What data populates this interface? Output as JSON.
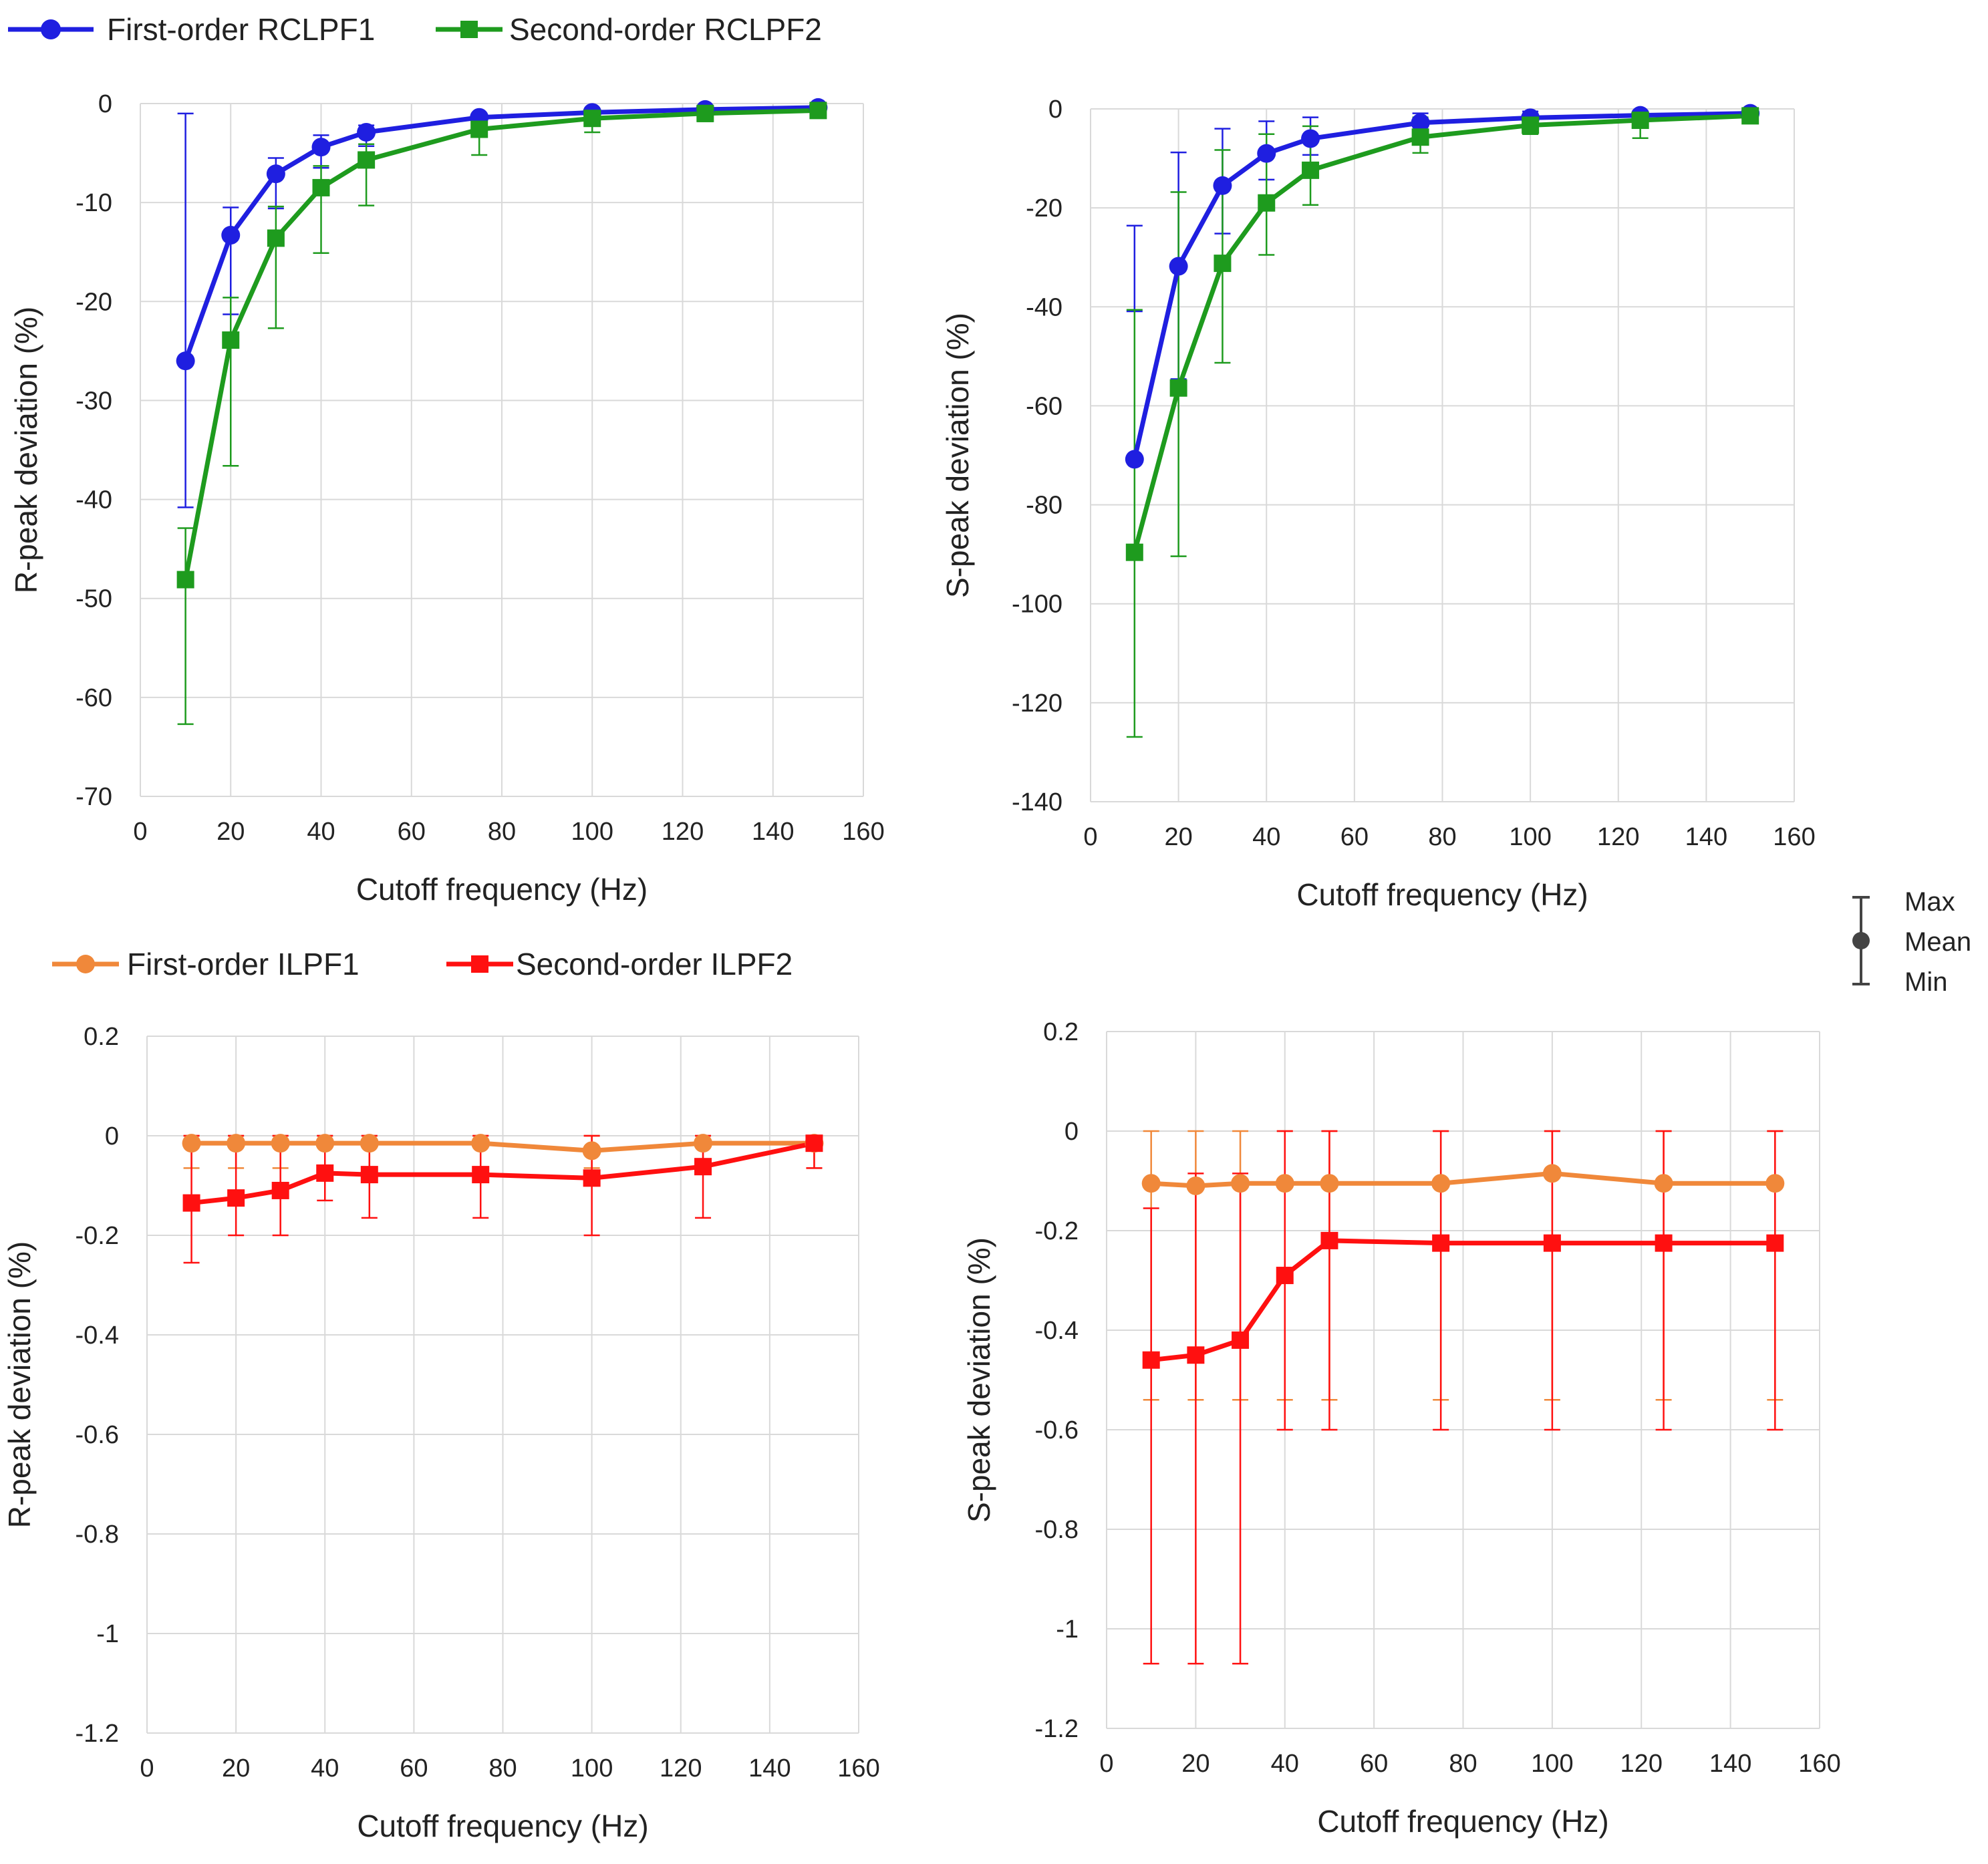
{
  "legend_top": [
    {
      "label": "First-order RCLPF1",
      "color": "#1f1fe0",
      "marker": "circle"
    },
    {
      "label": "Second-order RCLPF2",
      "color": "#1e9b1e",
      "marker": "square"
    }
  ],
  "legend_bottom": [
    {
      "label": "First-order ILPF1",
      "color": "#f0883a",
      "marker": "circle"
    },
    {
      "label": "Second-order ILPF2",
      "color": "#ff1010",
      "marker": "square"
    }
  ],
  "errorbar_key": {
    "max": "Max",
    "mean": "Mean",
    "min": "Min"
  },
  "chart_data": [
    {
      "id": "chart-rclpf-r",
      "type": "line",
      "title": "",
      "xlabel": "Cutoff frequency (Hz)",
      "ylabel": "R-peak deviation (%)",
      "xlim": [
        0,
        160
      ],
      "ylim": [
        -70,
        0
      ],
      "xticks": [
        0,
        20,
        40,
        60,
        80,
        100,
        120,
        140,
        160
      ],
      "yticks": [
        0,
        -10,
        -20,
        -30,
        -40,
        -50,
        -60,
        -70
      ],
      "x": [
        10,
        20,
        30,
        40,
        50,
        75,
        100,
        125,
        150
      ],
      "series": [
        {
          "name": "First-order RCLPF1",
          "color": "#1f1fe0",
          "marker": "circle",
          "values": [
            -26,
            -13.3,
            -7.1,
            -4.4,
            -2.9,
            -1.4,
            -0.9,
            -0.6,
            -0.4
          ],
          "max": [
            -1,
            -10.5,
            -5.5,
            -3.2,
            -2.2,
            -1.0,
            -0.6,
            -0.4,
            -0.2
          ],
          "min": [
            -40.8,
            -21.3,
            -10.6,
            -6.5,
            -4.3,
            -2.2,
            -1.3,
            -0.9,
            -0.7
          ]
        },
        {
          "name": "Second-order RCLPF2",
          "color": "#1e9b1e",
          "marker": "square",
          "values": [
            -48.1,
            -23.9,
            -13.6,
            -8.5,
            -5.7,
            -2.6,
            -1.5,
            -1.0,
            -0.7
          ],
          "max": [
            -42.9,
            -19.6,
            -10.4,
            -6.3,
            -4.1,
            -1.8,
            -0.9,
            -0.6,
            -0.4
          ],
          "min": [
            -62.7,
            -36.6,
            -22.7,
            -15.1,
            -10.3,
            -5.2,
            -2.9,
            -1.8,
            -1.2
          ]
        }
      ]
    },
    {
      "id": "chart-rclpf-s",
      "type": "line",
      "title": "",
      "xlabel": "Cutoff frequency (Hz)",
      "ylabel": "S-peak deviation (%)",
      "xlim": [
        0,
        160
      ],
      "ylim": [
        -140,
        0
      ],
      "xticks": [
        0,
        20,
        40,
        60,
        80,
        100,
        120,
        140,
        160
      ],
      "yticks": [
        0,
        -20,
        -40,
        -60,
        -80,
        -100,
        -120,
        -140
      ],
      "x": [
        10,
        20,
        30,
        40,
        50,
        75,
        100,
        125,
        150
      ],
      "series": [
        {
          "name": "First-order RCLPF1",
          "color": "#1f1fe0",
          "marker": "circle",
          "values": [
            -70.8,
            -31.8,
            -15.5,
            -9.0,
            -6.0,
            -2.8,
            -1.8,
            -1.3,
            -0.9
          ],
          "max": [
            -23.6,
            -8.8,
            -4.0,
            -2.5,
            -1.7,
            -0.9,
            -0.5,
            -0.4,
            -0.3
          ],
          "min": [
            -40.9,
            -54.6,
            -25.2,
            -14.3,
            -9.3,
            -4.4,
            -2.6,
            -1.9,
            -1.3
          ]
        },
        {
          "name": "Second-order RCLPF2",
          "color": "#1e9b1e",
          "marker": "square",
          "values": [
            -89.6,
            -56.4,
            -31.2,
            -19.0,
            -12.4,
            -5.7,
            -3.3,
            -2.3,
            -1.4
          ],
          "max": [
            -40.6,
            -16.8,
            -8.3,
            -5.1,
            -3.5,
            -1.7,
            -1.0,
            -0.8,
            -0.6
          ],
          "min": [
            -126.9,
            -90.4,
            -51.3,
            -29.5,
            -19.4,
            -8.9,
            -5.1,
            -5.9,
            -2.1
          ]
        }
      ]
    },
    {
      "id": "chart-ilpf-r",
      "type": "line",
      "title": "",
      "xlabel": "Cutoff frequency (Hz)",
      "ylabel": "R-peak deviation (%)",
      "xlim": [
        0,
        160
      ],
      "ylim": [
        -1.2,
        0.2
      ],
      "xticks": [
        0,
        20,
        40,
        60,
        80,
        100,
        120,
        140,
        160
      ],
      "yticks": [
        0.2,
        0,
        -0.2,
        -0.4,
        -0.6,
        -0.8,
        -1,
        -1.2
      ],
      "x": [
        10,
        20,
        30,
        40,
        50,
        75,
        100,
        125,
        150
      ],
      "series": [
        {
          "name": "First-order ILPF1",
          "color": "#f0883a",
          "marker": "circle",
          "values": [
            -0.015,
            -0.015,
            -0.015,
            -0.015,
            -0.015,
            -0.015,
            -0.03,
            -0.015,
            -0.015
          ],
          "max": [
            0,
            0,
            0,
            0,
            0,
            0,
            0,
            0,
            0
          ],
          "min": [
            -0.065,
            -0.065,
            -0.065,
            -0.065,
            -0.065,
            -0.065,
            -0.065,
            -0.065,
            -0.065
          ]
        },
        {
          "name": "Second-order ILPF2",
          "color": "#ff1010",
          "marker": "square",
          "values": [
            -0.135,
            -0.125,
            -0.11,
            -0.075,
            -0.078,
            -0.078,
            -0.085,
            -0.062,
            -0.015
          ],
          "max": [
            0,
            0,
            0,
            0,
            0,
            0,
            0,
            0,
            0
          ],
          "min": [
            -0.255,
            -0.2,
            -0.2,
            -0.13,
            -0.165,
            -0.165,
            -0.2,
            -0.165,
            -0.065
          ]
        }
      ]
    },
    {
      "id": "chart-ilpf-s",
      "type": "line",
      "title": "",
      "xlabel": "Cutoff frequency (Hz)",
      "ylabel": "S-peak deviation (%)",
      "xlim": [
        0,
        160
      ],
      "ylim": [
        -1.2,
        0.2
      ],
      "xticks": [
        0,
        20,
        40,
        60,
        80,
        100,
        120,
        140,
        160
      ],
      "yticks": [
        0.2,
        0,
        -0.2,
        -0.4,
        -0.6,
        -0.8,
        -1,
        -1.2
      ],
      "x": [
        10,
        20,
        30,
        40,
        50,
        75,
        100,
        125,
        150
      ],
      "series": [
        {
          "name": "First-order ILPF1",
          "color": "#f0883a",
          "marker": "circle",
          "values": [
            -0.105,
            -0.11,
            -0.105,
            -0.105,
            -0.105,
            -0.105,
            -0.085,
            -0.105,
            -0.105
          ],
          "max": [
            0,
            0,
            0,
            0,
            0,
            0,
            0,
            0,
            0
          ],
          "min": [
            -0.54,
            -0.54,
            -0.54,
            -0.54,
            -0.54,
            -0.54,
            -0.54,
            -0.54,
            -0.54
          ]
        },
        {
          "name": "Second-order ILPF2",
          "color": "#ff1010",
          "marker": "square",
          "values": [
            -0.46,
            -0.45,
            -0.42,
            -0.29,
            -0.22,
            -0.225,
            -0.225,
            -0.225,
            -0.225
          ],
          "max": [
            -0.155,
            -0.085,
            -0.085,
            0,
            0,
            0,
            0,
            0,
            0
          ],
          "min": [
            -1.07,
            -1.07,
            -1.07,
            -0.6,
            -0.6,
            -0.6,
            -0.6,
            -0.6,
            -0.6
          ]
        }
      ]
    }
  ]
}
